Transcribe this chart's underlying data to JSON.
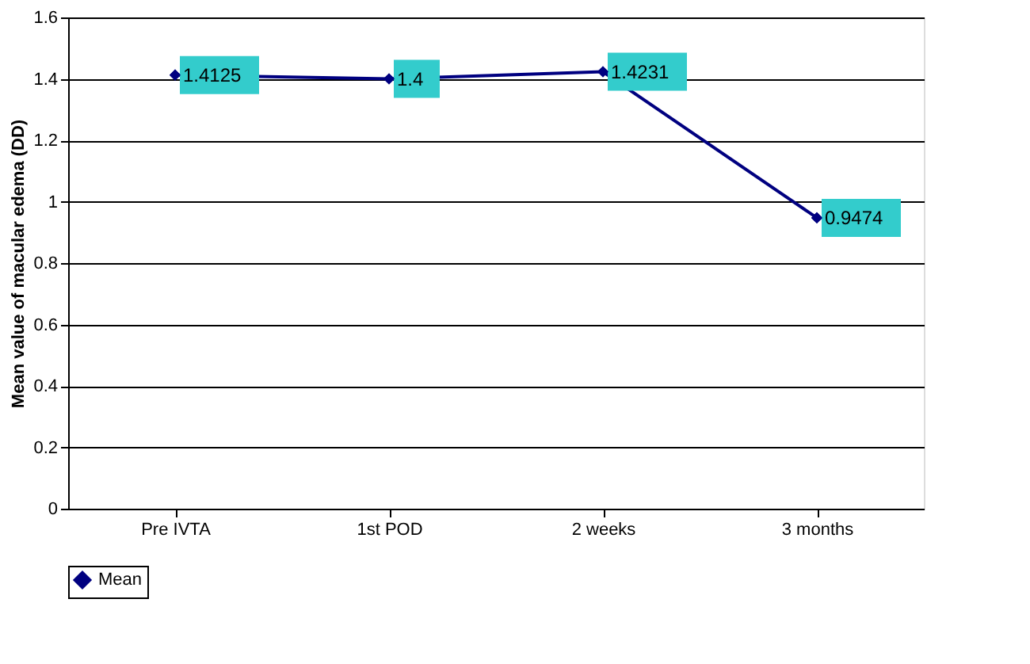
{
  "chart_data": {
    "type": "line",
    "ylabel": "Mean value of macular edema (DD)",
    "categories": [
      "Pre IVTA",
      "1st POD",
      "2 weeks",
      "3 months"
    ],
    "series": [
      {
        "name": "Mean",
        "color": "#000080",
        "values": [
          1.4125,
          1.4,
          1.4231,
          0.9474
        ]
      }
    ],
    "ylim": [
      0,
      1.6
    ],
    "yticks": [
      0,
      0.2,
      0.4,
      0.6,
      0.8,
      1,
      1.2,
      1.4,
      1.6
    ],
    "grid": "y",
    "legend": "bottom",
    "marker": "diamond",
    "line_style": "solid",
    "data_labels": true
  }
}
